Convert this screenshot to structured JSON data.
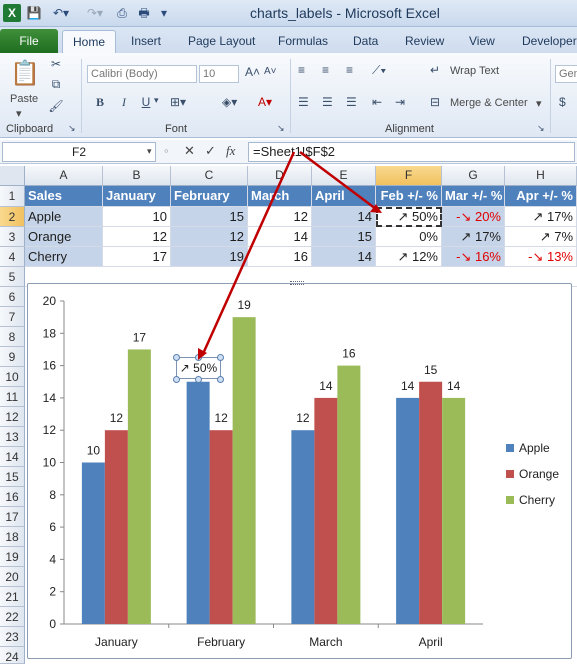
{
  "window": {
    "title": "charts_labels  -  Microsoft Excel",
    "app_icon": "excel-logo-icon"
  },
  "ribbon": {
    "file_tab": "File",
    "tabs": [
      "Home",
      "Insert",
      "Page Layout",
      "Formulas",
      "Data",
      "Review",
      "View",
      "Developer"
    ],
    "active_tab": "Home",
    "clipboard": {
      "paste_label": "Paste",
      "group_label": "Clipboard"
    },
    "font": {
      "name": "Calibri (Body)",
      "size": "10",
      "group_label": "Font",
      "bold": "B",
      "italic": "I",
      "underline": "U"
    },
    "alignment": {
      "wrap_text": "Wrap Text",
      "merge_center": "Merge & Center",
      "group_label": "Alignment"
    },
    "number": {
      "format_partial": "Gen"
    }
  },
  "formula_bar": {
    "name_box": "F2",
    "fx_label": "fx",
    "formula": "=Sheet1!$F$2"
  },
  "sheet": {
    "columns": [
      "A",
      "B",
      "C",
      "D",
      "E",
      "F",
      "G",
      "H"
    ],
    "rows": [
      "1",
      "2",
      "3",
      "4",
      "5",
      "6",
      "7",
      "8",
      "9",
      "10",
      "11",
      "12",
      "13",
      "14",
      "15",
      "16",
      "17",
      "18",
      "19",
      "20",
      "21",
      "22",
      "23",
      "24"
    ],
    "header": [
      "Sales",
      "January",
      "February",
      "March",
      "April",
      "Feb +/- %",
      "Mar +/- %",
      "Apr +/- %"
    ],
    "data": [
      [
        "Apple",
        "10",
        "15",
        "12",
        "14",
        "↗ 50%",
        "-↘ 20%",
        "↗ 17%"
      ],
      [
        "Orange",
        "12",
        "12",
        "14",
        "15",
        "0%",
        "↗ 17%",
        "↗ 7%"
      ],
      [
        "Cherry",
        "17",
        "19",
        "16",
        "14",
        "↗ 12%",
        "-↘ 16%",
        "-↘ 13%"
      ]
    ],
    "negative_color": "#e00000",
    "header_fill": "#4f81bd",
    "band_fill": "#c5d4e8"
  },
  "chart_data": {
    "type": "bar",
    "categories": [
      "January",
      "February",
      "March",
      "April"
    ],
    "series": [
      {
        "name": "Apple",
        "values": [
          10,
          15,
          12,
          14
        ],
        "color": "#4f81bd"
      },
      {
        "name": "Orange",
        "values": [
          12,
          12,
          14,
          15
        ],
        "color": "#c0504d"
      },
      {
        "name": "Cherry",
        "values": [
          17,
          19,
          16,
          14
        ],
        "color": "#9bbb59"
      }
    ],
    "ylim": [
      0,
      20
    ],
    "yticks": [
      "0",
      "2",
      "4",
      "6",
      "8",
      "10",
      "12",
      "14",
      "16",
      "18",
      "20"
    ],
    "grid": false,
    "legend": "right",
    "callout_label": "↗ 50%",
    "annotation_color": "#c00000"
  }
}
